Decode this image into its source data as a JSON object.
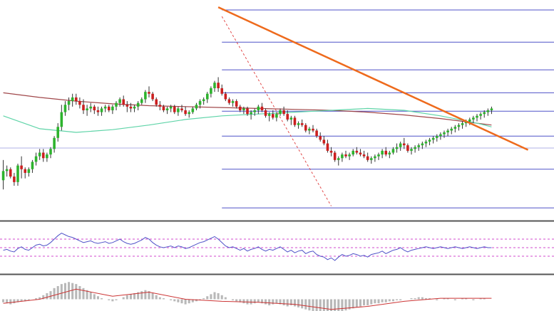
{
  "chart_data": {
    "type": "candlestick",
    "title": "",
    "xlabel": "",
    "ylabel": "",
    "grid": false,
    "colors": {
      "bull_body": "#2db32d",
      "bear_body": "#cc1f1f",
      "wick": "#333333",
      "ma_slow": "#a0474a",
      "ma_fast": "#5fd4a8",
      "fib_level": "#4f52c8",
      "trendline": "#ee6a1c",
      "fib_diagonal": "#e24a4a",
      "panel_divider": "#555555",
      "rsi_line": "#4f52c8",
      "rsi_band": "#d24acc",
      "macd_hist": "#b8b8b8",
      "macd_signal": "#cc3333"
    },
    "price_panel": {
      "ylim": [
        0,
        300
      ],
      "n_bars": 135,
      "candles": [
        [
          210,
          232,
          200,
          220
        ],
        [
          220,
          226,
          214,
          222
        ],
        [
          222,
          224,
          212,
          214
        ],
        [
          214,
          218,
          204,
          208
        ],
        [
          208,
          228,
          204,
          226
        ],
        [
          226,
          236,
          212,
          222
        ],
        [
          222,
          224,
          212,
          218
        ],
        [
          218,
          224,
          214,
          222
        ],
        [
          222,
          232,
          218,
          230
        ],
        [
          230,
          240,
          226,
          236
        ],
        [
          236,
          244,
          232,
          240
        ],
        [
          240,
          244,
          230,
          234
        ],
        [
          234,
          240,
          230,
          238
        ],
        [
          238,
          246,
          234,
          244
        ],
        [
          244,
          258,
          240,
          256
        ],
        [
          256,
          272,
          252,
          268
        ],
        [
          268,
          292,
          264,
          284
        ],
        [
          284,
          296,
          280,
          292
        ],
        [
          292,
          300,
          286,
          296
        ],
        [
          296,
          304,
          290,
          300
        ],
        [
          300,
          304,
          292,
          296
        ],
        [
          296,
          300,
          288,
          292
        ],
        [
          292,
          298,
          282,
          286
        ],
        [
          286,
          292,
          280,
          288
        ],
        [
          288,
          294,
          284,
          290
        ],
        [
          290,
          292,
          282,
          286
        ],
        [
          286,
          290,
          280,
          284
        ],
        [
          284,
          290,
          280,
          288
        ],
        [
          288,
          292,
          284,
          290
        ],
        [
          290,
          292,
          284,
          286
        ],
        [
          286,
          292,
          282,
          290
        ],
        [
          290,
          296,
          286,
          294
        ],
        [
          294,
          300,
          290,
          298
        ],
        [
          298,
          302,
          290,
          292
        ],
        [
          292,
          296,
          284,
          290
        ],
        [
          290,
          294,
          284,
          288
        ],
        [
          288,
          292,
          284,
          290
        ],
        [
          290,
          296,
          286,
          294
        ],
        [
          294,
          300,
          292,
          298
        ],
        [
          298,
          308,
          294,
          306
        ],
        [
          306,
          312,
          300,
          304
        ],
        [
          304,
          306,
          296,
          298
        ],
        [
          298,
          300,
          290,
          292
        ],
        [
          292,
          296,
          286,
          290
        ],
        [
          290,
          292,
          284,
          286
        ],
        [
          286,
          290,
          282,
          288
        ],
        [
          288,
          292,
          284,
          290
        ],
        [
          290,
          292,
          282,
          284
        ],
        [
          284,
          290,
          280,
          288
        ],
        [
          288,
          292,
          284,
          286
        ],
        [
          286,
          290,
          280,
          282
        ],
        [
          282,
          286,
          278,
          284
        ],
        [
          284,
          290,
          282,
          288
        ],
        [
          288,
          294,
          286,
          292
        ],
        [
          292,
          298,
          288,
          296
        ],
        [
          296,
          300,
          292,
          298
        ],
        [
          298,
          306,
          294,
          304
        ],
        [
          304,
          312,
          300,
          310
        ],
        [
          310,
          318,
          306,
          316
        ],
        [
          316,
          322,
          306,
          310
        ],
        [
          310,
          314,
          302,
          304
        ],
        [
          304,
          306,
          296,
          298
        ],
        [
          298,
          300,
          292,
          294
        ],
        [
          294,
          298,
          290,
          296
        ],
        [
          296,
          298,
          288,
          290
        ],
        [
          290,
          292,
          284,
          286
        ],
        [
          286,
          290,
          282,
          288
        ],
        [
          288,
          290,
          280,
          282
        ],
        [
          282,
          286,
          276,
          284
        ],
        [
          284,
          288,
          280,
          286
        ],
        [
          286,
          292,
          282,
          290
        ],
        [
          290,
          294,
          284,
          286
        ],
        [
          286,
          288,
          278,
          280
        ],
        [
          280,
          284,
          274,
          282
        ],
        [
          282,
          286,
          276,
          278
        ],
        [
          278,
          284,
          274,
          282
        ],
        [
          282,
          288,
          280,
          286
        ],
        [
          286,
          290,
          280,
          282
        ],
        [
          282,
          286,
          274,
          276
        ],
        [
          276,
          280,
          270,
          278
        ],
        [
          278,
          280,
          268,
          270
        ],
        [
          270,
          274,
          266,
          272
        ],
        [
          272,
          276,
          268,
          270
        ],
        [
          270,
          272,
          262,
          264
        ],
        [
          264,
          268,
          260,
          266
        ],
        [
          266,
          270,
          262,
          264
        ],
        [
          264,
          266,
          256,
          258
        ],
        [
          258,
          262,
          252,
          254
        ],
        [
          254,
          258,
          248,
          250
        ],
        [
          250,
          254,
          240,
          242
        ],
        [
          242,
          246,
          236,
          240
        ],
        [
          240,
          242,
          230,
          232
        ],
        [
          232,
          236,
          226,
          234
        ],
        [
          234,
          240,
          230,
          238
        ],
        [
          238,
          242,
          234,
          236
        ],
        [
          236,
          240,
          232,
          238
        ],
        [
          238,
          244,
          236,
          242
        ],
        [
          242,
          246,
          238,
          240
        ],
        [
          240,
          244,
          236,
          238
        ],
        [
          238,
          242,
          234,
          236
        ],
        [
          236,
          240,
          230,
          232
        ],
        [
          232,
          236,
          228,
          234
        ],
        [
          234,
          238,
          230,
          236
        ],
        [
          236,
          240,
          232,
          238
        ],
        [
          238,
          244,
          234,
          242
        ],
        [
          242,
          246,
          236,
          238
        ],
        [
          238,
          242,
          234,
          240
        ],
        [
          240,
          246,
          238,
          244
        ],
        [
          244,
          250,
          240,
          246
        ],
        [
          246,
          252,
          242,
          250
        ],
        [
          250,
          256,
          244,
          248
        ],
        [
          248,
          250,
          240,
          242
        ],
        [
          242,
          246,
          238,
          244
        ],
        [
          244,
          248,
          240,
          246
        ],
        [
          246,
          250,
          242,
          248
        ],
        [
          248,
          252,
          244,
          250
        ],
        [
          250,
          254,
          246,
          252
        ],
        [
          252,
          256,
          248,
          254
        ],
        [
          254,
          258,
          250,
          256
        ],
        [
          256,
          260,
          252,
          258
        ],
        [
          258,
          262,
          254,
          260
        ],
        [
          260,
          264,
          256,
          262
        ],
        [
          262,
          266,
          258,
          264
        ],
        [
          264,
          268,
          260,
          266
        ],
        [
          266,
          270,
          262,
          268
        ],
        [
          268,
          272,
          264,
          270
        ],
        [
          270,
          274,
          266,
          272
        ],
        [
          272,
          276,
          268,
          274
        ],
        [
          274,
          278,
          270,
          276
        ],
        [
          276,
          280,
          272,
          278
        ],
        [
          278,
          282,
          274,
          280
        ],
        [
          280,
          284,
          276,
          282
        ],
        [
          282,
          286,
          278,
          284
        ],
        [
          284,
          288,
          280,
          286
        ],
        [
          286,
          290,
          282,
          288
        ]
      ],
      "ma_slow": [
        [
          0,
          305
        ],
        [
          10,
          300
        ],
        [
          20,
          296
        ],
        [
          30,
          293
        ],
        [
          40,
          291
        ],
        [
          50,
          290
        ],
        [
          60,
          289
        ],
        [
          70,
          288
        ],
        [
          80,
          287
        ],
        [
          90,
          286
        ],
        [
          100,
          284
        ],
        [
          110,
          281
        ],
        [
          120,
          277
        ],
        [
          130,
          272
        ],
        [
          134,
          270
        ]
      ],
      "ma_fast": [
        [
          0,
          280
        ],
        [
          10,
          266
        ],
        [
          20,
          262
        ],
        [
          30,
          265
        ],
        [
          40,
          270
        ],
        [
          50,
          276
        ],
        [
          60,
          280
        ],
        [
          70,
          282
        ],
        [
          80,
          284
        ],
        [
          90,
          286
        ],
        [
          100,
          288
        ],
        [
          110,
          286
        ],
        [
          120,
          280
        ],
        [
          130,
          272
        ],
        [
          134,
          268
        ]
      ],
      "fib_levels": [
        {
          "value": 395,
          "from_bar": 60
        },
        {
          "value": 360,
          "from_bar": 60
        },
        {
          "value": 330,
          "from_bar": 60
        },
        {
          "value": 305,
          "from_bar": 60
        },
        {
          "value": 285,
          "from_bar": 60
        },
        {
          "value": 258,
          "from_bar": 60
        },
        {
          "value": 245,
          "from_bar": 0
        },
        {
          "value": 222,
          "from_bar": 60
        },
        {
          "value": 180,
          "from_bar": 60
        }
      ],
      "trendline": [
        [
          59,
          398
        ],
        [
          144,
          243
        ]
      ],
      "fib_diagonal": [
        [
          60,
          388
        ],
        [
          90,
          182
        ]
      ]
    },
    "rsi_panel": {
      "ylim": [
        0,
        100
      ],
      "bands": [
        70,
        50,
        30
      ],
      "values": [
        44,
        46,
        42,
        40,
        48,
        52,
        46,
        44,
        50,
        56,
        58,
        54,
        56,
        62,
        70,
        78,
        84,
        80,
        76,
        74,
        70,
        66,
        62,
        64,
        66,
        62,
        60,
        62,
        64,
        60,
        62,
        66,
        70,
        64,
        60,
        58,
        60,
        64,
        68,
        74,
        70,
        62,
        56,
        52,
        50,
        52,
        54,
        50,
        54,
        52,
        48,
        50,
        54,
        58,
        62,
        64,
        68,
        72,
        76,
        70,
        62,
        54,
        50,
        52,
        48,
        44,
        48,
        42,
        46,
        48,
        52,
        46,
        42,
        46,
        44,
        48,
        52,
        46,
        40,
        44,
        38,
        42,
        44,
        36,
        40,
        42,
        34,
        30,
        28,
        22,
        26,
        20,
        28,
        34,
        30,
        32,
        36,
        34,
        30,
        32,
        28,
        34,
        36,
        38,
        42,
        36,
        40,
        44,
        46,
        50,
        44,
        40,
        44,
        46,
        48,
        50,
        52,
        50,
        48,
        50,
        52,
        50,
        48,
        50,
        52,
        50,
        48,
        50,
        52,
        50,
        48,
        50,
        52,
        50,
        50
      ]
    },
    "macd_panel": {
      "ylim": [
        -40,
        40
      ],
      "histogram": [
        -6,
        -8,
        -10,
        -8,
        -6,
        -4,
        -4,
        -2,
        0,
        2,
        4,
        8,
        12,
        16,
        22,
        26,
        30,
        32,
        34,
        32,
        30,
        26,
        22,
        18,
        14,
        10,
        6,
        2,
        0,
        -2,
        -4,
        -2,
        0,
        4,
        8,
        10,
        12,
        14,
        16,
        18,
        16,
        12,
        8,
        4,
        2,
        0,
        -2,
        -4,
        -6,
        -8,
        -10,
        -8,
        -6,
        -4,
        -2,
        2,
        6,
        10,
        14,
        12,
        8,
        4,
        0,
        -2,
        -4,
        -6,
        -8,
        -10,
        -10,
        -8,
        -6,
        -8,
        -10,
        -12,
        -10,
        -8,
        -10,
        -12,
        -14,
        -12,
        -14,
        -16,
        -18,
        -20,
        -22,
        -24,
        -26,
        -28,
        -30,
        -32,
        -30,
        -28,
        -26,
        -24,
        -22,
        -20,
        -18,
        -16,
        -14,
        -12,
        -12,
        -10,
        -8,
        -8,
        -6,
        -6,
        -4,
        -4,
        -2,
        -2,
        0,
        0,
        2,
        2,
        4,
        4,
        2,
        2,
        0,
        -2,
        0,
        2,
        2,
        0,
        -2,
        0,
        2,
        2,
        0,
        -2,
        0,
        2,
        2,
        0,
        0
      ],
      "signal": [
        [
          0,
          -8
        ],
        [
          10,
          0
        ],
        [
          20,
          20
        ],
        [
          30,
          6
        ],
        [
          40,
          14
        ],
        [
          50,
          0
        ],
        [
          60,
          -4
        ],
        [
          70,
          -6
        ],
        [
          80,
          -10
        ],
        [
          90,
          -20
        ],
        [
          100,
          -14
        ],
        [
          110,
          -4
        ],
        [
          120,
          2
        ],
        [
          130,
          2
        ],
        [
          134,
          2
        ]
      ]
    }
  }
}
